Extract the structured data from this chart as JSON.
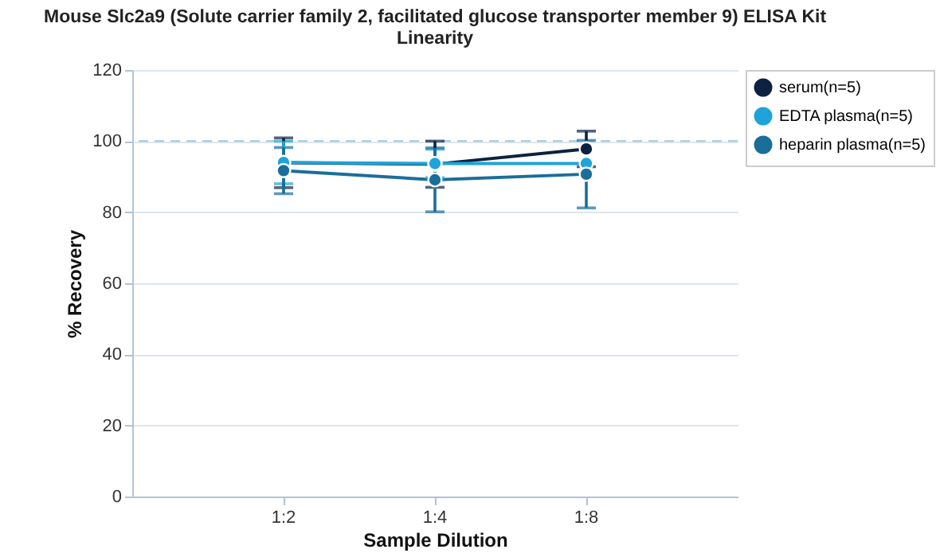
{
  "chart_data": {
    "type": "line",
    "title": [
      "Mouse Slc2a9 (Solute carrier family 2, facilitated glucose transporter member 9) ELISA Kit",
      "Linearity"
    ],
    "xlabel": "Sample Dilution",
    "ylabel": "% Recovery",
    "categories": [
      "1:2",
      "1:4",
      "1:8"
    ],
    "series": [
      {
        "name": "serum(n=5)",
        "color": "#0d2240",
        "values": [
          93.9,
          93.5,
          97.8
        ],
        "errors": [
          7,
          6.5,
          5
        ]
      },
      {
        "name": "EDTA plasma(n=5)",
        "color": "#1fa3d8",
        "values": [
          94,
          93.7,
          93.7
        ],
        "errors": [
          6,
          4,
          null
        ]
      },
      {
        "name": "heparin plasma(n=5)",
        "color": "#1a6e9a",
        "values": [
          91.7,
          89.1,
          90.7
        ],
        "errors": [
          6.5,
          9,
          9.5
        ]
      }
    ],
    "ylim": [
      0,
      120
    ],
    "yticks": [
      0,
      20,
      40,
      60,
      80,
      100,
      120
    ],
    "grid": "y",
    "legend": "top right",
    "marker": "circle",
    "line_style": "solid",
    "ref_lines": [
      {
        "axis": "y",
        "value": 100,
        "color": "#9ecae1",
        "line_style": "dashed"
      }
    ]
  }
}
